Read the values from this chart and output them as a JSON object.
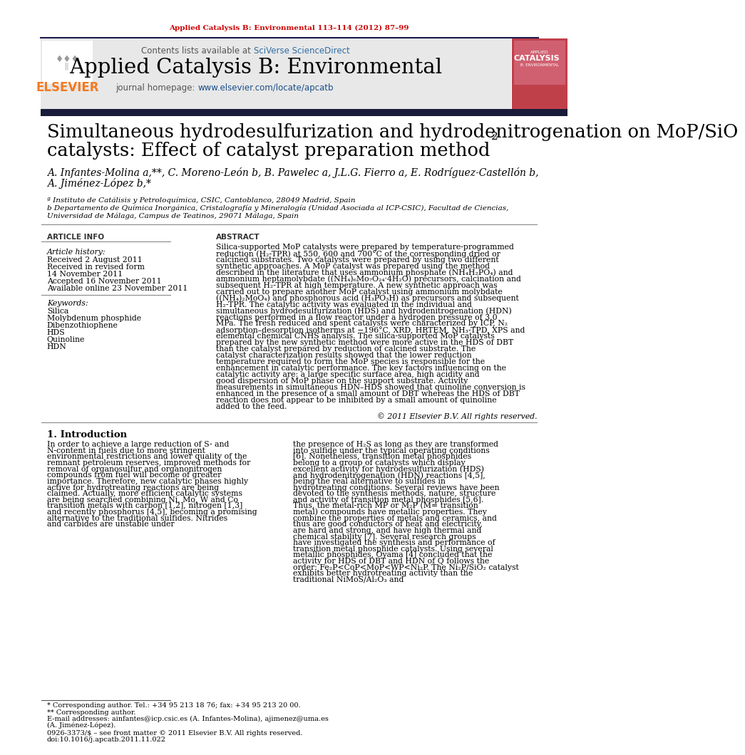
{
  "page_bg": "#ffffff",
  "top_citation": "Applied Catalysis B: Environmental 113–114 (2012) 87–99",
  "journal_name": "Applied Catalysis B: Environmental",
  "contents_text": "Contents lists available at ",
  "sciverse_text": "SciVerse ScienceDirect",
  "homepage_label": "journal homepage: ",
  "homepage_url": "www.elsevier.com/locate/apcatb",
  "elsevier_color": "#f47920",
  "header_bg": "#e8e8e8",
  "dark_bar_color": "#1a1a2e",
  "top_line_color": "#1a1a4e",
  "article_title_line1": "Simultaneous hydrodesulfurization and hydrodenitrogenation on MoP/SiO",
  "article_title_sub": "2",
  "article_title_line2": "catalysts: Effect of catalyst preparation method",
  "authors": "A. Infantes-Molina a,**, C. Moreno-León b, B. Pawelec a, J.L.G. Fierro a, E. Rodríguez-Castellón b,",
  "authors2": "A. Jiménez-López b,*",
  "affil_a": "ª Instituto de Catálisis y Petroloquímica, CSIC, Cantoblanco, 28049 Madrid, Spain",
  "affil_b": "b Departamento de Química Inorgánica, Cristalografía y Mineralogía (Unidad Asociada al ICP-CSIC), Facultad de Ciencias,",
  "affil_b2": "Universidad de Málaga, Campus de Teatinos, 29071 Málaga, Spain",
  "article_info_header": "ARTICLE INFO",
  "abstract_header": "ABSTRACT",
  "article_history_label": "Article history:",
  "received1": "Received 2 August 2011",
  "received2": "Received in revised form",
  "received2b": "14 November 2011",
  "accepted": "Accepted 16 November 2011",
  "available": "Available online 23 November 2011",
  "keywords_label": "Keywords:",
  "keywords": [
    "Silica",
    "Molybdenum phosphide",
    "Dibenzothiophene",
    "HDS",
    "Quinoline",
    "HDN"
  ],
  "abstract_text": "Silica-supported MoP catalysts were prepared by temperature-programmed reduction (H₂-TPR) at 550, 600 and 700°C of the corresponding dried or calcined substrates. Two catalysts were prepared by using two different synthetic approaches. A MoP catalyst was prepared using the method described in the literature that uses ammonium phosphate (NH₄H₂PO₄) and ammonium heptamolybdate ((NH₄)₆Mo₇O₂₄·4H₂O) precursors, calcination and subsequent H₂-TPR at high temperature. A new synthetic approach was carried out to prepare another MoP catalyst using ammonium molybdate ((NH₄)₂MoO₄) and phosphorous acid (H₃PO₃H) as precursors and subsequent H₂-TPR. The catalytic activity was evaluated in the individual and simultaneous hydrodesulfurization (HDS) and hydrodenitrogenation (HDN) reactions performed in a flow reactor under a hydrogen pressure of 3.0 MPa. The fresh reduced and spent catalysts were characterized by ICP, N₂ adsorption–desorption isotherms at −196°C, XRD, HRTEM, NH₃-TPD, XPS and elemental chemical CNHS analysis. The silica-supported MoP catalysts prepared by the new synthetic method were more active in the HDS of DBT than the catalyst prepared by reduction of calcined substrate. The catalyst characterization results showed that the lower reduction temperature required to form the MoP species is responsible for the enhancement in catalytic performance. The key factors influencing on the catalytic activity are: a large specific surface area, high acidity and good dispersion of MoP phase on the support substrate. Activity measurements in simultaneous HDN–HDS showed that quinoline conversion is enhanced in the presence of a small amount of DBT whereas the HDS of DBT reaction does not appear to be inhibited by a small amount of quinoline added to the feed.",
  "copyright": "© 2011 Elsevier B.V. All rights reserved.",
  "intro_header": "1. Introduction",
  "intro_col1": "In order to achieve a large reduction of S- and N-content in fuels due to more stringent environmental restrictions and lower quality of the remnant petroleum reserves, improved methods for removal of organosulfur and organonitrogen compounds from fuel will become of greater importance. Therefore, new catalytic phases highly active for hydrotreating reactions are being claimed. Actually, more efficient catalytic systems are being searched combining Ni, Mo, W and Co transition metals with carbon [1,2], nitrogen [1,3] and recently phosphorus [4,5], becoming a promising alternative to the traditional sulfides. Nitrides and carbides are unstable under",
  "intro_col2": "the presence of H₂S as long as they are transformed into sulfide under the typical operating conditions [6]. Nonetheless, transition metal phosphides belong to a group of catalysts which display excellent activity for hydrodesulfurization (HDS) and hydrodenitrogenation (HDN) reactions [4,5], being the real alternative to sulfides in hydrotreating conditions. Several reviews have been devoted to the synthesis methods, nature, structure and activity of transition metal phosphides [5,6]. Thus, the metal-rich MP or M₂P (M= transition metal) compounds have metallic properties. They combine the properties of metals and ceramics, and thus are good conductors of heat and electricity, are hard and strong, and have high thermal and chemical stability [7]. Several research groups have investigated the synthesis and performance of transition metal phosphide catalysts. Using several metallic phosphides, Oyama [4] concluded that the activity for HDS of DBT and HDN of Q follows the order: Fe₂P<CoP<MoP<WP<Ni₂P. The Ni₂P/SiO₂ catalyst exhibits better hydrotreating activity than the traditional NiMoS/Al₂O₃ and",
  "footnote1": "* Corresponding author. Tel.: +34 95 213 18 76; fax: +34 95 213 20 00.",
  "footnote2": "** Corresponding author.",
  "footnote3": "E-mail addresses: ainfantes@icp.csic.es (A. Infantes-Molina), ajimenez@uma.es",
  "footnote4": "(A. Jiménez-López).",
  "issn": "0926-3373/$ – see front matter © 2011 Elsevier B.V. All rights reserved.",
  "doi": "doi:10.1016/j.apcatb.2011.11.022",
  "link_color": "#1a4f8a",
  "sciverse_color": "#2e6da4",
  "citation_color": "#cc0000"
}
